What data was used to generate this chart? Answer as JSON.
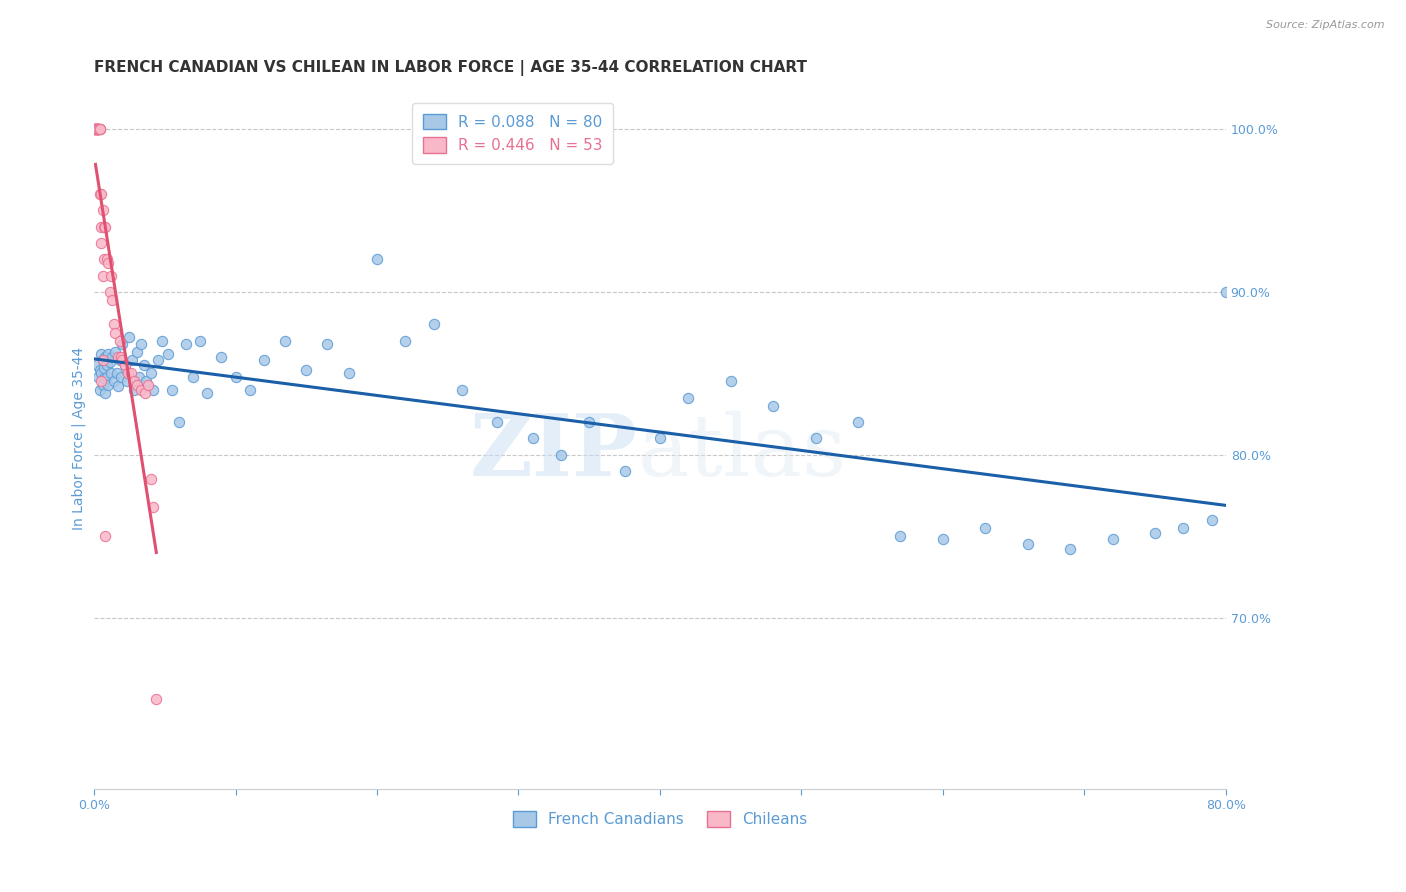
{
  "title": "FRENCH CANADIAN VS CHILEAN IN LABOR FORCE | AGE 35-44 CORRELATION CHART",
  "source": "Source: ZipAtlas.com",
  "ylabel": "In Labor Force | Age 35-44",
  "xlim": [
    0.0,
    0.8
  ],
  "ylim": [
    0.595,
    1.025
  ],
  "yticks_right": [
    0.7,
    0.8,
    0.9,
    1.0
  ],
  "axis_color": "#5b9bd5",
  "grid_color": "#c8c8c8",
  "watermark_zip": "ZIP",
  "watermark_atlas": "atlas",
  "legend_entries": [
    {
      "label": "R = 0.088   N = 80",
      "color": "#5b9bd5"
    },
    {
      "label": "R = 0.446   N = 53",
      "color": "#e87090"
    }
  ],
  "fc_dot_color": "#a8c8e8",
  "fc_dot_edgecolor": "#5b9bd5",
  "ch_dot_color": "#f9b8c8",
  "ch_dot_edgecolor": "#e87090",
  "fc_line_color": "#1a5fa8",
  "ch_line_color": "#e05070",
  "title_fontsize": 11,
  "axis_label_fontsize": 10,
  "tick_fontsize": 9,
  "legend_fontsize": 11,
  "dot_size": 55,
  "dot_alpha": 0.85,
  "french_canadian_x": [
    0.002,
    0.003,
    0.004,
    0.004,
    0.005,
    0.005,
    0.006,
    0.006,
    0.007,
    0.007,
    0.008,
    0.008,
    0.009,
    0.009,
    0.01,
    0.01,
    0.011,
    0.012,
    0.013,
    0.014,
    0.015,
    0.016,
    0.017,
    0.018,
    0.019,
    0.02,
    0.022,
    0.023,
    0.025,
    0.027,
    0.028,
    0.03,
    0.032,
    0.033,
    0.035,
    0.037,
    0.04,
    0.042,
    0.045,
    0.048,
    0.052,
    0.055,
    0.06,
    0.065,
    0.07,
    0.075,
    0.08,
    0.09,
    0.1,
    0.11,
    0.12,
    0.135,
    0.15,
    0.165,
    0.18,
    0.2,
    0.22,
    0.24,
    0.26,
    0.285,
    0.31,
    0.33,
    0.35,
    0.375,
    0.4,
    0.42,
    0.45,
    0.48,
    0.51,
    0.54,
    0.57,
    0.6,
    0.63,
    0.66,
    0.69,
    0.72,
    0.75,
    0.77,
    0.79,
    0.8
  ],
  "french_canadian_y": [
    0.855,
    0.848,
    0.852,
    0.84,
    0.862,
    0.85,
    0.843,
    0.858,
    0.847,
    0.853,
    0.86,
    0.838,
    0.855,
    0.848,
    0.862,
    0.843,
    0.857,
    0.85,
    0.86,
    0.845,
    0.863,
    0.85,
    0.842,
    0.858,
    0.848,
    0.868,
    0.855,
    0.845,
    0.872,
    0.858,
    0.84,
    0.863,
    0.848,
    0.868,
    0.855,
    0.845,
    0.85,
    0.84,
    0.858,
    0.87,
    0.862,
    0.84,
    0.82,
    0.868,
    0.848,
    0.87,
    0.838,
    0.86,
    0.848,
    0.84,
    0.858,
    0.87,
    0.852,
    0.868,
    0.85,
    0.92,
    0.87,
    0.88,
    0.84,
    0.82,
    0.81,
    0.8,
    0.82,
    0.79,
    0.81,
    0.835,
    0.845,
    0.83,
    0.81,
    0.82,
    0.75,
    0.748,
    0.755,
    0.745,
    0.742,
    0.748,
    0.752,
    0.755,
    0.76,
    0.9
  ],
  "chilean_x": [
    0.001,
    0.001,
    0.001,
    0.001,
    0.001,
    0.001,
    0.002,
    0.002,
    0.002,
    0.002,
    0.002,
    0.003,
    0.003,
    0.003,
    0.003,
    0.003,
    0.004,
    0.004,
    0.004,
    0.004,
    0.005,
    0.005,
    0.005,
    0.006,
    0.006,
    0.007,
    0.007,
    0.008,
    0.009,
    0.01,
    0.011,
    0.012,
    0.013,
    0.014,
    0.015,
    0.017,
    0.018,
    0.019,
    0.02,
    0.022,
    0.024,
    0.026,
    0.028,
    0.03,
    0.033,
    0.036,
    0.038,
    0.04,
    0.042,
    0.044,
    0.005,
    0.006,
    0.008
  ],
  "chilean_y": [
    1.0,
    1.0,
    1.0,
    1.0,
    1.0,
    1.0,
    1.0,
    1.0,
    1.0,
    1.0,
    1.0,
    1.0,
    1.0,
    1.0,
    1.0,
    1.0,
    1.0,
    1.0,
    1.0,
    0.96,
    0.94,
    0.96,
    0.93,
    0.95,
    0.91,
    0.94,
    0.92,
    0.94,
    0.92,
    0.918,
    0.9,
    0.91,
    0.895,
    0.88,
    0.875,
    0.86,
    0.87,
    0.86,
    0.858,
    0.855,
    0.85,
    0.85,
    0.845,
    0.843,
    0.84,
    0.838,
    0.843,
    0.785,
    0.768,
    0.65,
    0.845,
    0.858,
    0.75
  ]
}
